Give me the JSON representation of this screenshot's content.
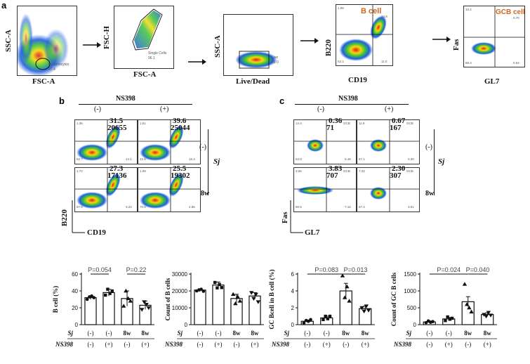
{
  "panel_a": {
    "letter": "a",
    "steps": [
      {
        "x_label": "FSC-A",
        "y_label": "SSC-A",
        "gate_name": "Lymphocytes",
        "gate_value": "47.4"
      },
      {
        "x_label": "FSC-A",
        "y_label": "FSC-H",
        "gate_name": "Single Cells",
        "gate_value": "96.1"
      },
      {
        "x_label": "Live/Dead",
        "y_label": "SSC-A",
        "gate_name": "Live",
        "gate_value": "99.0"
      },
      {
        "x_label": "CD19",
        "y_label": "B220",
        "highlight": "B cell",
        "q1": "1.99",
        "q2": "34.8",
        "q3": "11.0",
        "q4": "52.1"
      },
      {
        "x_label": "GL7",
        "y_label": "Fas",
        "highlight": "GCB cell",
        "q1": "10.2",
        "q2": "0.70",
        "q3": "0.54",
        "q4": "88.3"
      }
    ]
  },
  "panel_b": {
    "letter": "b",
    "header": "NS398",
    "col_signs": [
      "(-)",
      "(+)"
    ],
    "row_signs": [
      "(-)",
      "8w"
    ],
    "row_group": "Sj",
    "x_label": "CD19",
    "y_label": "B220",
    "cells": [
      {
        "pct": "31.5",
        "count": "20655",
        "q1": "1.35",
        "q4": "52.7",
        "q3": "14.1"
      },
      {
        "pct": "39.6",
        "count": "25044",
        "q1": "1.51",
        "q4": "42.8",
        "q3": "16.4"
      },
      {
        "pct": "27.3",
        "count": "17136",
        "q1": "1.72",
        "q4": "67.8",
        "q3": "3.22"
      },
      {
        "pct": "25.5",
        "count": "19302",
        "q1": "1.08",
        "q4": "70.5",
        "q3": "2.86"
      }
    ]
  },
  "panel_c": {
    "letter": "c",
    "header": "NS398",
    "col_signs": [
      "(-)",
      "(+)"
    ],
    "row_signs": [
      "(-)",
      "8w"
    ],
    "row_group": "Sj",
    "x_label": "GL7",
    "y_label": "Fas",
    "gate_tag": "GCB",
    "cells": [
      {
        "pct": "0.36",
        "count": "71",
        "q1": "14.4",
        "q4": "84.8",
        "q3": "0.46"
      },
      {
        "pct": "0.67",
        "count": "167",
        "q1": "11.9",
        "q4": "87.1",
        "q3": "0.30"
      },
      {
        "pct": "3.83",
        "count": "707",
        "q1": "3.66",
        "q4": "90.5",
        "q3": "7.16"
      },
      {
        "pct": "2.30",
        "count": "307",
        "q1": "7.32",
        "q4": "87.4",
        "q3": "3.01"
      }
    ]
  },
  "group_rows": {
    "row1_label": "Sj",
    "row2_label": "NS398",
    "sj": [
      "(-)",
      "(-)",
      "8w",
      "8w"
    ],
    "ns398": [
      "(-)",
      "(+)",
      "(-)",
      "(+)"
    ]
  },
  "colors": {
    "bar_fill": "#ffffff",
    "bar_stroke": "#111111",
    "highlight_text": "#d0651f",
    "pval_line": "#111111"
  },
  "chart_data": [
    {
      "type": "bar",
      "ylabel": "B cell (%)",
      "ylim": [
        0,
        60
      ],
      "yticks": [
        "0",
        "20",
        "40",
        "60"
      ],
      "values": [
        32,
        38,
        31,
        23
      ],
      "errors": [
        2,
        4,
        9,
        5
      ],
      "points": [
        [
          30,
          33,
          34,
          32
        ],
        [
          35,
          42,
          37,
          40
        ],
        [
          22,
          40,
          31,
          28
        ],
        [
          18,
          27,
          24,
          20
        ]
      ],
      "markers": [
        "circle",
        "square",
        "triangle",
        "triangle-down"
      ],
      "annotations": [
        {
          "from": 0,
          "to": 1,
          "text": "P=0.054"
        },
        {
          "from": 2,
          "to": 3,
          "text": "P=0.22"
        }
      ]
    },
    {
      "type": "bar",
      "ylabel": "Count of B cells",
      "ylim": [
        0,
        30000
      ],
      "yticks": [
        "0",
        "10000",
        "20000",
        "30000"
      ],
      "values": [
        20500,
        23500,
        15500,
        17000
      ],
      "errors": [
        800,
        1800,
        2500,
        2000
      ],
      "points": [
        [
          20000,
          20600,
          21000,
          19800
        ],
        [
          25000,
          21800,
          23800,
          22000
        ],
        [
          18000,
          12500,
          16500,
          14000
        ],
        [
          19000,
          15500,
          18000,
          13500
        ]
      ],
      "markers": [
        "circle",
        "square",
        "triangle",
        "triangle-down"
      ],
      "annotations": []
    },
    {
      "type": "bar",
      "ylabel": "GC Bcell in B cell (%)",
      "ylim": [
        0,
        6
      ],
      "yticks": [
        "0",
        "2",
        "4",
        "6"
      ],
      "values": [
        0.4,
        0.8,
        4.0,
        1.9
      ],
      "errors": [
        0.15,
        0.2,
        0.9,
        0.3
      ],
      "points": [
        [
          0.2,
          0.5,
          0.4,
          0.6
        ],
        [
          0.6,
          1.0,
          0.7,
          1.0
        ],
        [
          5.8,
          3.2,
          4.5,
          2.8
        ],
        [
          2.0,
          1.6,
          2.2,
          1.7
        ]
      ],
      "markers": [
        "circle",
        "square",
        "triangle",
        "triangle-down"
      ],
      "annotations": [
        {
          "from": 0,
          "to": 2,
          "text": "P=0.083"
        },
        {
          "from": 2,
          "to": 3,
          "text": "P=0.013"
        }
      ]
    },
    {
      "type": "bar",
      "ylabel": "Count of GC B cells",
      "ylim": [
        0,
        1500
      ],
      "yticks": [
        "0",
        "500",
        "1000",
        "1500"
      ],
      "values": [
        80,
        170,
        680,
        300
      ],
      "errors": [
        30,
        40,
        150,
        50
      ],
      "points": [
        [
          60,
          110,
          70,
          90
        ],
        [
          120,
          230,
          160,
          190
        ],
        [
          1200,
          600,
          500,
          380
        ],
        [
          300,
          250,
          360,
          280
        ]
      ],
      "markers": [
        "circle",
        "square",
        "triangle",
        "triangle-down"
      ],
      "annotations": [
        {
          "from": 0,
          "to": 2,
          "text": "P=0.024"
        },
        {
          "from": 2,
          "to": 3,
          "text": "P=0.040"
        }
      ]
    }
  ]
}
